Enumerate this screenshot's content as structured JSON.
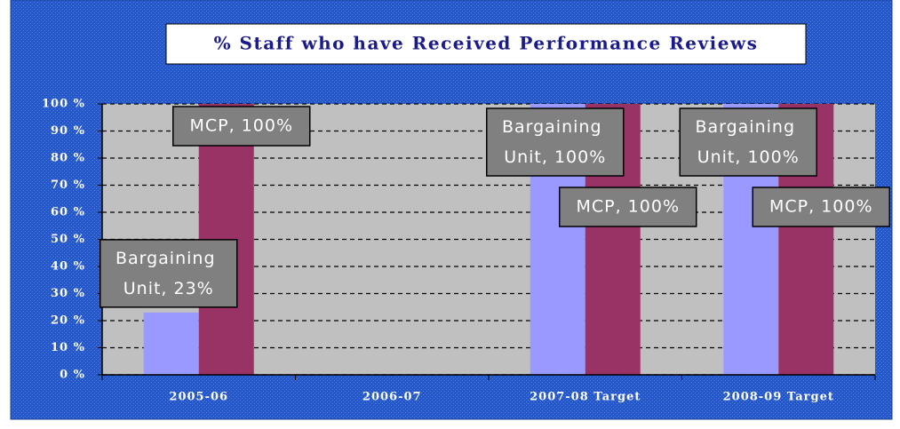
{
  "chart_data": {
    "type": "bar",
    "title": "% Staff who have Received Performance Reviews",
    "categories": [
      "2005-06",
      "2006-07",
      "2007-08 Target",
      "2008-09 Target"
    ],
    "series": [
      {
        "name": "Bargaining Unit",
        "color": "#9999ff",
        "values": [
          23,
          null,
          100,
          100
        ],
        "value_labels": [
          "Bargaining Unit, 23%",
          null,
          "Bargaining Unit, 100%",
          "Bargaining Unit, 100%"
        ]
      },
      {
        "name": "MCP",
        "color": "#993366",
        "values": [
          100,
          null,
          100,
          100
        ],
        "value_labels": [
          "MCP, 100%",
          null,
          "MCP, 100%",
          "MCP, 100%"
        ]
      }
    ],
    "ylim": [
      0,
      100
    ],
    "yticks": [
      {
        "value": 0,
        "label": "0 %"
      },
      {
        "value": 10,
        "label": "10 %"
      },
      {
        "value": 20,
        "label": "20 %"
      },
      {
        "value": 30,
        "label": "30 %"
      },
      {
        "value": 40,
        "label": "40 %"
      },
      {
        "value": 50,
        "label": "50 %"
      },
      {
        "value": 60,
        "label": "60 %"
      },
      {
        "value": 70,
        "label": "70 %"
      },
      {
        "value": 80,
        "label": "80 %"
      },
      {
        "value": 90,
        "label": "90 %"
      },
      {
        "value": 100,
        "label": "100 %"
      }
    ],
    "grid": true
  }
}
